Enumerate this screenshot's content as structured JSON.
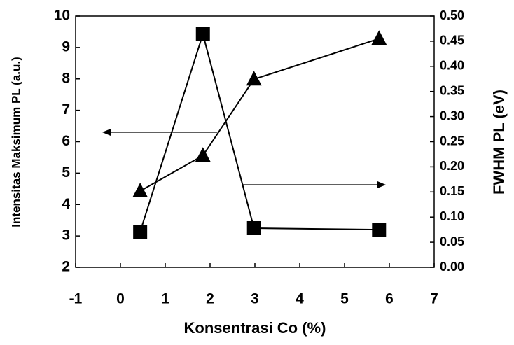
{
  "chart_data": {
    "type": "line",
    "x_label": "Konsentrasi Co (%)",
    "y_label": "Intensitas Maksimum PL (a.u.)",
    "y2_label": "FWHM PL (eV)",
    "x": [
      0.44,
      1.84,
      2.98,
      5.77
    ],
    "series": [
      {
        "color": "#000000",
        "marker": "triangle",
        "values": [
          4.43,
          5.56,
          7.99,
          9.28
        ]
      },
      {
        "color": "#000000",
        "marker": "square",
        "axis": "y2",
        "values": [
          0.071,
          0.464,
          0.078,
          0.075
        ]
      }
    ],
    "xlim": [
      -1,
      7
    ],
    "xticks": [
      -1,
      0,
      1,
      2,
      3,
      4,
      5,
      6,
      7
    ],
    "ylim": [
      2,
      10
    ],
    "yticks": [
      2,
      3,
      4,
      5,
      6,
      7,
      8,
      9,
      10
    ],
    "y2lim": [
      0,
      0.5
    ],
    "y2ticks": [
      {
        "value": 0,
        "label": "0.00"
      },
      {
        "value": 0.05,
        "label": "0.05"
      },
      {
        "value": 0.1,
        "label": "0.10"
      },
      {
        "value": 0.15,
        "label": "0.15"
      },
      {
        "value": 0.2,
        "label": "0.20"
      },
      {
        "value": 0.25,
        "label": "0.25"
      },
      {
        "value": 0.3,
        "label": "0.30"
      },
      {
        "value": 0.35,
        "label": "0.35"
      },
      {
        "value": 0.4,
        "label": "0.40"
      },
      {
        "value": 0.45,
        "label": "0.45"
      },
      {
        "value": 0.5,
        "label": "0.50"
      }
    ]
  }
}
